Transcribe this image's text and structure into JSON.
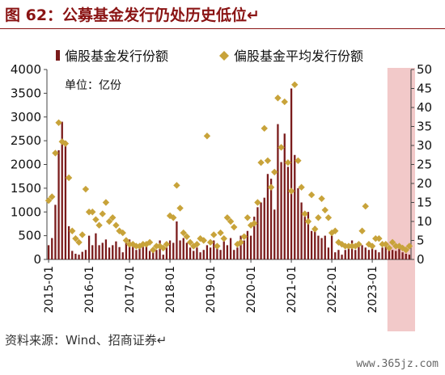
{
  "title": "图 62：公募基金发行仍处历史低位↵",
  "source": "资料来源：Wind、招商证券↵",
  "watermark": "www.365jz.com",
  "unit_note": "单位：亿份",
  "colors": {
    "bar": "#7a1b1b",
    "diamond": "#c8a33a",
    "highlight": "#f2c9c9",
    "title": "#8a1414"
  },
  "chart_data": {
    "type": "bar+scatter",
    "title": "",
    "x_start": "2015-01",
    "x_ticks": [
      "2015-01",
      "2016-01",
      "2017-01",
      "2018-01",
      "2019-01",
      "2020-01",
      "2021-01",
      "2022-01",
      "2023-01"
    ],
    "legend": {
      "position": "top",
      "entries": [
        "偏股基金发行份额",
        "偏股基金平均发行份额"
      ]
    },
    "left_axis": {
      "ylim": [
        0,
        4000
      ],
      "ticks": [
        "0",
        "500",
        "1000",
        "1500",
        "2000",
        "2500",
        "3000",
        "3500",
        "4000"
      ]
    },
    "right_axis": {
      "ylim": [
        0,
        50
      ],
      "ticks": [
        "0",
        "5",
        "10",
        "15",
        "20",
        "25",
        "30",
        "35",
        "40",
        "45",
        "50"
      ]
    },
    "highlight_region": {
      "from": "2023-06",
      "to": "2023-12"
    },
    "series": [
      {
        "name": "偏股基金发行份额",
        "type": "bar",
        "axis": "left",
        "values": [
          300,
          450,
          1150,
          2300,
          2900,
          2500,
          700,
          180,
          120,
          100,
          160,
          200,
          500,
          300,
          550,
          300,
          350,
          420,
          250,
          300,
          380,
          260,
          150,
          400,
          420,
          300,
          200,
          250,
          300,
          350,
          180,
          250,
          200,
          400,
          100,
          250,
          400,
          350,
          800,
          400,
          450,
          350,
          250,
          180,
          250,
          150,
          200,
          300,
          250,
          400,
          300,
          200,
          380,
          300,
          450,
          200,
          250,
          500,
          400,
          600,
          500,
          900,
          1100,
          1200,
          1300,
          1800,
          1700,
          1050,
          2850,
          2050,
          2650,
          1950,
          3600,
          2200,
          1500,
          1200,
          900,
          1000,
          600,
          700,
          500,
          450,
          500,
          250,
          500,
          150,
          200,
          100,
          200,
          300,
          400,
          200,
          300,
          300,
          250,
          200,
          300,
          200,
          150,
          250,
          300,
          250,
          200,
          180,
          220,
          150,
          120,
          100
        ]
      },
      {
        "name": "偏股基金平均发行份额",
        "type": "scatter",
        "axis": "right",
        "values": [
          15.5,
          16.5,
          28,
          36,
          31,
          30.5,
          21.5,
          7.5,
          5.5,
          4.5,
          6.5,
          18.5,
          12.5,
          12.5,
          10.5,
          9,
          12,
          15,
          10,
          11,
          9,
          7.5,
          7,
          5,
          4,
          4,
          3.5,
          3.5,
          4,
          4,
          4.5,
          2.5,
          3.5,
          3.5,
          3,
          4,
          11.5,
          11,
          19.5,
          13.5,
          7,
          6,
          4.5,
          3.5,
          4,
          5.5,
          5,
          32.5,
          4.5,
          6.5,
          3.5,
          7,
          5.5,
          11,
          10,
          8.5,
          4,
          4.5,
          6,
          11,
          9,
          9.5,
          15,
          25.5,
          34.5,
          26,
          19,
          23,
          42.5,
          29.5,
          41.5,
          25.5,
          18,
          46,
          26,
          19,
          12,
          10,
          17,
          8,
          11,
          16,
          13,
          11,
          7,
          7.5,
          4.5,
          4,
          3.5,
          3.5,
          3.5,
          3.5,
          4,
          7.5,
          14,
          4,
          3.5,
          5.5,
          5.5,
          4,
          4,
          3,
          4.5,
          3.5,
          3.5,
          3,
          2.5,
          3.5
        ]
      }
    ]
  }
}
